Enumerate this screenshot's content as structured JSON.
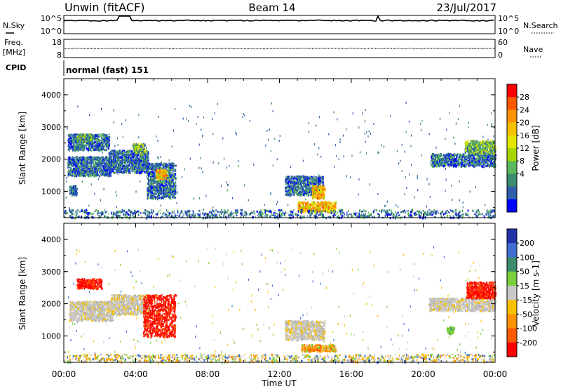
{
  "header": {
    "site": "Unwin (fitACF)",
    "beam": "Beam 14",
    "date": "23/Jul/2017"
  },
  "status_panels": {
    "nsky": {
      "label": "N.Sky",
      "ticks": [
        "10^5",
        "10^0"
      ]
    },
    "nsearch": {
      "label": "N.Search",
      "ticks": [
        "10^5",
        "10^0"
      ]
    },
    "freq": {
      "label_line1": "Freq.",
      "label_line2": "[MHz]",
      "ticks": [
        "18",
        "8"
      ]
    },
    "nave": {
      "label": "Nave",
      "ticks": [
        "60",
        "0"
      ]
    },
    "cpid": {
      "label": "CPID",
      "value": "normal (fast) 151"
    }
  },
  "chart_data": [
    {
      "type": "heatmap",
      "name": "power-panel",
      "ylabel": "Slant Range [km]",
      "xlim": [
        0,
        24
      ],
      "ylim": [
        180,
        4500
      ],
      "yticks": [
        "1000",
        "2000",
        "3000",
        "4000"
      ],
      "colorbar": {
        "label": "Power [dB]",
        "ticks": [
          "28",
          "24",
          "20",
          "16",
          "12",
          "8",
          "4"
        ],
        "colors": [
          "#ff0000",
          "#ff5a00",
          "#ff9400",
          "#f7c000",
          "#e6e600",
          "#a7d500",
          "#5cb85c",
          "#3c8c6e",
          "#2f5fa8",
          "#0000ff"
        ]
      },
      "regions": [
        {
          "t": [
            0.2,
            2.6
          ],
          "r": [
            1500,
            2100
          ],
          "level": "low"
        },
        {
          "t": [
            0.2,
            2.5
          ],
          "r": [
            2300,
            2800
          ],
          "level": "low"
        },
        {
          "t": [
            0.7,
            1.5
          ],
          "r": [
            2600,
            2800
          ],
          "level": "mid"
        },
        {
          "t": [
            0.3,
            0.7
          ],
          "r": [
            900,
            1200
          ],
          "level": "low"
        },
        {
          "t": [
            2.5,
            4.7
          ],
          "r": [
            1600,
            2300
          ],
          "level": "low"
        },
        {
          "t": [
            3.8,
            4.5
          ],
          "r": [
            2200,
            2500
          ],
          "level": "mid"
        },
        {
          "t": [
            4.6,
            6.2
          ],
          "r": [
            800,
            1900
          ],
          "level": "low"
        },
        {
          "t": [
            5.1,
            5.7
          ],
          "r": [
            1400,
            1700
          ],
          "level": "high"
        },
        {
          "t": [
            12.3,
            14.4
          ],
          "r": [
            900,
            1500
          ],
          "level": "low"
        },
        {
          "t": [
            13.8,
            14.5
          ],
          "r": [
            800,
            1200
          ],
          "level": "high"
        },
        {
          "t": [
            13.0,
            15.1
          ],
          "r": [
            380,
            700
          ],
          "level": "high"
        },
        {
          "t": [
            20.4,
            24.0
          ],
          "r": [
            1800,
            2200
          ],
          "level": "low"
        },
        {
          "t": [
            22.3,
            24.0
          ],
          "r": [
            2200,
            2600
          ],
          "level": "mid"
        },
        {
          "t": [
            0.0,
            24.0
          ],
          "r": [
            200,
            450
          ],
          "level": "low"
        }
      ]
    },
    {
      "type": "heatmap",
      "name": "velocity-panel",
      "ylabel": "Slant Range [km]",
      "xlabel": "Time UT",
      "xlim": [
        0,
        24
      ],
      "ylim": [
        180,
        4500
      ],
      "xticks": [
        "00:00",
        "04:00",
        "08:00",
        "12:00",
        "16:00",
        "20:00",
        "00:00"
      ],
      "yticks": [
        "1000",
        "2000",
        "3000",
        "4000"
      ],
      "colorbar": {
        "label": "Velocity [m s-1]",
        "ticks": [
          "200",
          "100",
          "50",
          "15",
          "-15",
          "-50",
          "-100",
          "-200"
        ],
        "colors": [
          "#2233aa",
          "#3f6fd0",
          "#3c8c6e",
          "#7bcf3c",
          "#c8c8c8",
          "#f7c000",
          "#ff9400",
          "#ff5a00",
          "#ff0000"
        ]
      },
      "regions": [
        {
          "t": [
            0.3,
            2.7
          ],
          "r": [
            1500,
            2100
          ],
          "level": "gray"
        },
        {
          "t": [
            0.7,
            2.1
          ],
          "r": [
            2500,
            2800
          ],
          "level": "red"
        },
        {
          "t": [
            2.6,
            4.7
          ],
          "r": [
            1700,
            2300
          ],
          "level": "gray"
        },
        {
          "t": [
            4.4,
            6.2
          ],
          "r": [
            1000,
            2300
          ],
          "level": "red"
        },
        {
          "t": [
            12.3,
            14.5
          ],
          "r": [
            900,
            1500
          ],
          "level": "gray"
        },
        {
          "t": [
            13.2,
            15.1
          ],
          "r": [
            550,
            750
          ],
          "level": "orange"
        },
        {
          "t": [
            20.3,
            24.0
          ],
          "r": [
            1800,
            2200
          ],
          "level": "gray"
        },
        {
          "t": [
            22.4,
            24.0
          ],
          "r": [
            2200,
            2700
          ],
          "level": "red"
        },
        {
          "t": [
            21.3,
            21.7
          ],
          "r": [
            1100,
            1300
          ],
          "level": "green"
        },
        {
          "t": [
            0.0,
            24.0
          ],
          "r": [
            200,
            450
          ],
          "level": "mixed"
        }
      ]
    }
  ]
}
